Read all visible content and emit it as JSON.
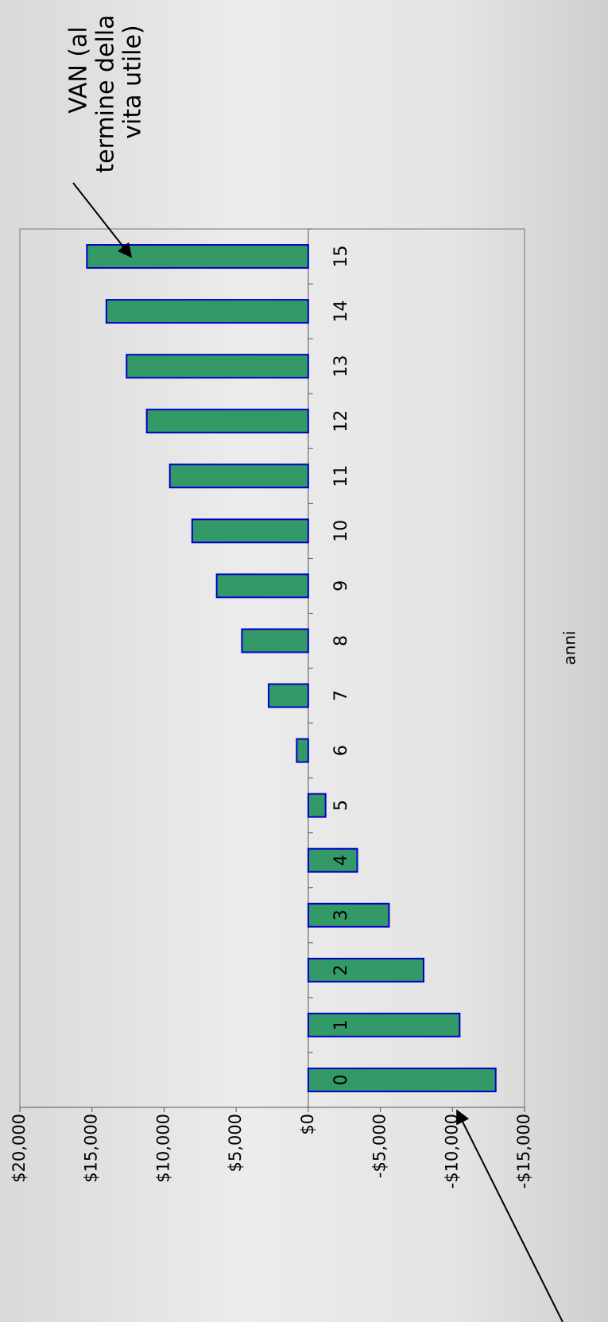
{
  "chart_data": {
    "type": "bar",
    "orientation": "rotated",
    "x_label": "anni",
    "annotation_lines": [
      "VAN (al",
      "termine della",
      "vita utile)"
    ],
    "categories": [
      "0",
      "1",
      "2",
      "3",
      "4",
      "5",
      "6",
      "7",
      "8",
      "9",
      "10",
      "11",
      "12",
      "13",
      "14",
      "15"
    ],
    "values": [
      -13000,
      -10500,
      -8000,
      -5600,
      -3400,
      -1200,
      800,
      2750,
      4600,
      6350,
      8050,
      9600,
      11200,
      12600,
      14000,
      15350
    ],
    "color": "#339966",
    "edge_color": "#0000cc",
    "ylim": [
      -15000,
      20000
    ],
    "yticks": [
      {
        "value": -15000,
        "label": "-$15,000"
      },
      {
        "value": -10000,
        "label": "-$10,000"
      },
      {
        "value": -5000,
        "label": "-$5,000"
      },
      {
        "value": 0,
        "label": "$0"
      },
      {
        "value": 5000,
        "label": "$5,000"
      },
      {
        "value": 10000,
        "label": "$10,000"
      },
      {
        "value": 15000,
        "label": "$15,000"
      },
      {
        "value": 20000,
        "label": "$20,000"
      }
    ],
    "grid": false
  }
}
